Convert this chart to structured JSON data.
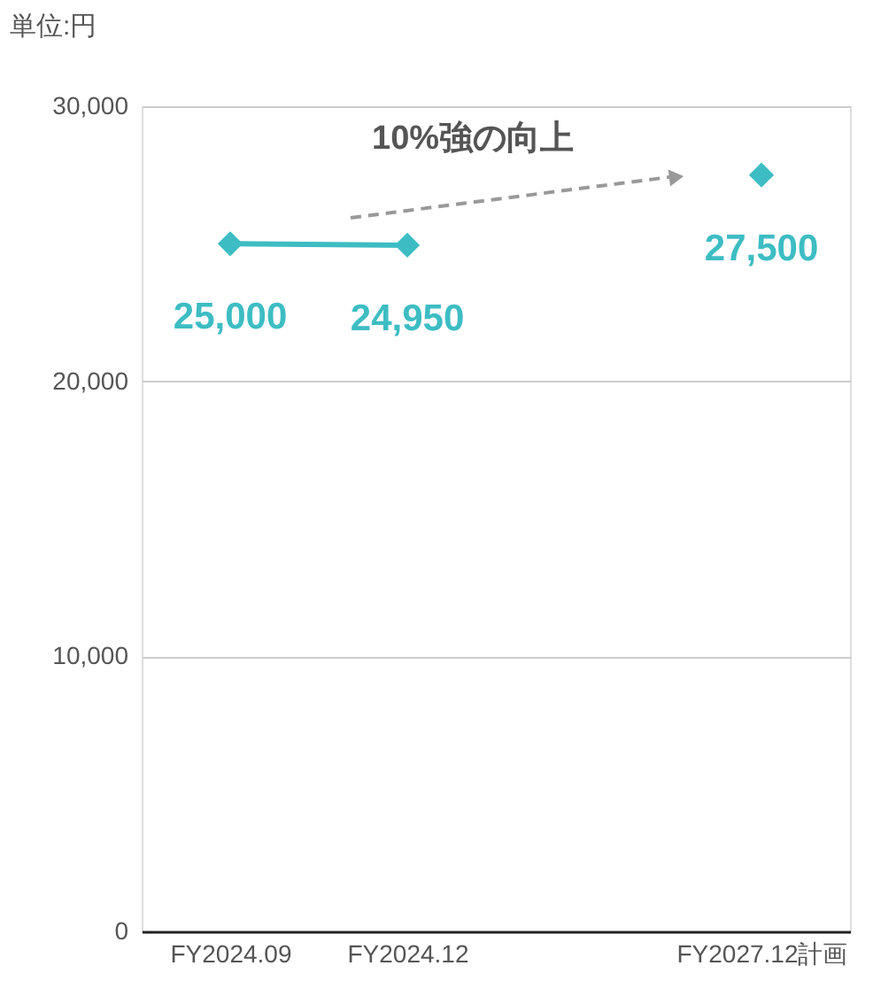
{
  "chart_data": {
    "type": "line",
    "ylabel": "単位:円",
    "categories": [
      "FY2024.09",
      "FY2024.12",
      null,
      "FY2027.12計画"
    ],
    "series": [
      {
        "color": "#3dbdc3",
        "values": [
          25000,
          24950,
          null,
          27500
        ],
        "value_labels": [
          "25,000",
          "24,950",
          null,
          "27,500"
        ]
      }
    ],
    "ylim": [
      0,
      30000
    ],
    "yticks": [
      {
        "value": 0,
        "label": "0"
      },
      {
        "value": 10000,
        "label": "10,000"
      },
      {
        "value": 20000,
        "label": "20,000"
      },
      {
        "value": 30000,
        "label": "30,000"
      }
    ],
    "grid": "y",
    "marker": "diamond",
    "line_style": "solid",
    "annotations": [
      "10%強の向上"
    ]
  }
}
